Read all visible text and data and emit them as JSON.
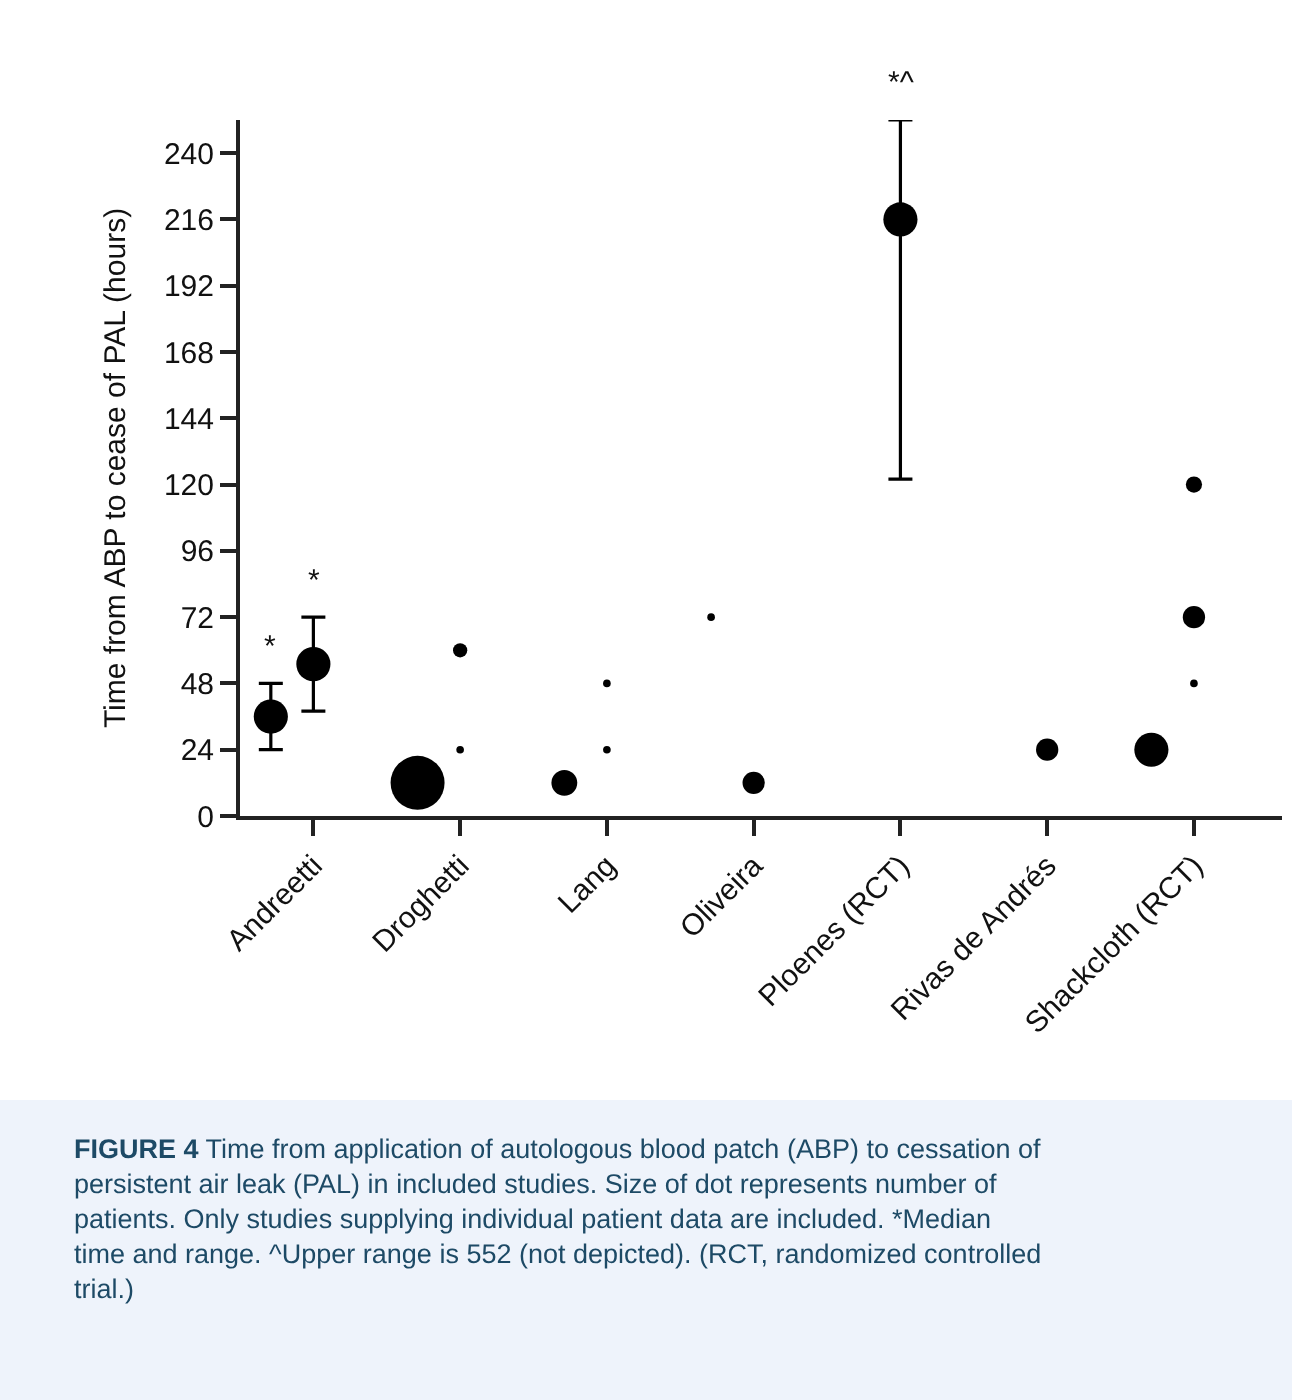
{
  "chart_data": {
    "type": "bubble",
    "ylabel": "Time from ABP to cease of PAL (hours)",
    "categories": [
      "Andreetti",
      "Droghetti",
      "Lang",
      "Oliveira",
      "Ploenes (RCT)",
      "Rivas de Andrés",
      "Shackcloth (RCT)"
    ],
    "series": [
      {
        "color": "#000000",
        "values": [
          36,
          12,
          12,
          72,
          null,
          null,
          24
        ],
        "sizes": [
          0.4,
          1,
          0.23,
          0.02,
          null,
          null,
          0.4
        ],
        "errors": [
          [
            24,
            48
          ],
          null,
          null,
          null,
          null,
          null,
          null
        ]
      },
      {
        "color": "#000000",
        "values": [
          55,
          60,
          48,
          12,
          216,
          24,
          120
        ],
        "sizes": [
          0.4,
          0.07,
          0.02,
          0.17,
          0.4,
          0.17,
          0.09
        ],
        "errors": [
          [
            38,
            72
          ],
          null,
          null,
          null,
          [
            122,
            252
          ],
          null,
          null
        ]
      },
      {
        "color": "#000000",
        "values": [
          null,
          24,
          24,
          null,
          null,
          null,
          72
        ],
        "sizes": [
          null,
          0.02,
          0.02,
          null,
          null,
          null,
          0.17
        ]
      },
      {
        "color": "#000000",
        "values": [
          null,
          null,
          null,
          null,
          null,
          null,
          48
        ],
        "sizes": [
          null,
          null,
          null,
          null,
          null,
          null,
          0.02
        ]
      }
    ],
    "ylim": [
      0,
      252
    ],
    "yticks": [
      0,
      24,
      48,
      72,
      96,
      120,
      144,
      168,
      192,
      216,
      240
    ],
    "annotations": [
      "*",
      "*",
      "*^",
      "FIGURE 4",
      "Time from application of autologous blood patch (ABP) to cessation of persistent air leak (PAL) in included studies. Size of dot represents number of patients. Only studies supplying individual patient data are included. *Median time and range. ^Upper range is 552 (not depicted). (RCT, randomized controlled trial.)"
    ]
  }
}
